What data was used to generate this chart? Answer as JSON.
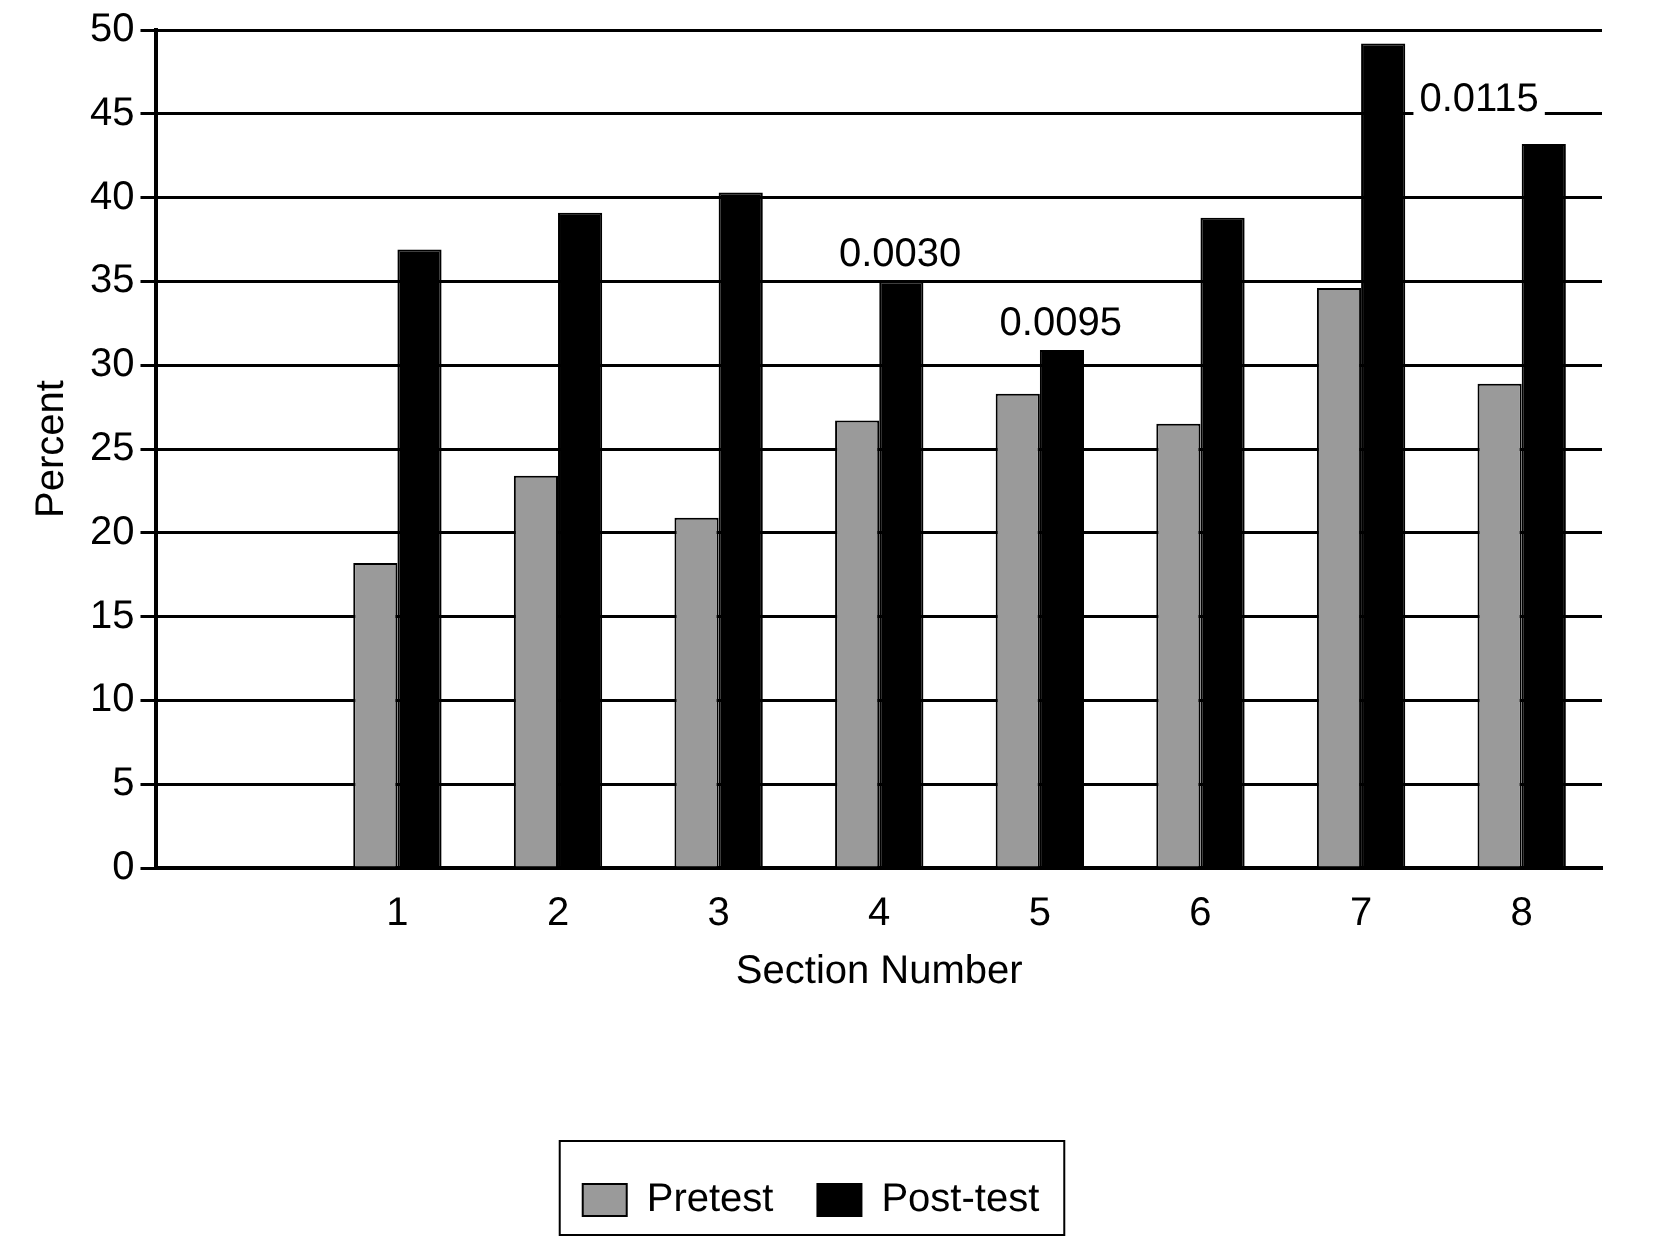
{
  "chart_data": {
    "type": "bar",
    "xlabel": "Section Number",
    "ylabel": "Percent",
    "categories": [
      null,
      "1",
      "2",
      "3",
      "4",
      "5",
      "6",
      "7",
      "8"
    ],
    "series": [
      {
        "name": "Pretest",
        "color": "#9a9a9a",
        "values": [
          null,
          18.2,
          23.4,
          20.9,
          26.7,
          28.3,
          26.5,
          34.6,
          28.9
        ]
      },
      {
        "name": "Post-test",
        "color": "#000000",
        "values": [
          null,
          36.9,
          39.1,
          40.3,
          35,
          30.9,
          38.8,
          49.2,
          43.2
        ]
      }
    ],
    "ylim": [
      0,
      50
    ],
    "yticks": [
      0,
      5,
      10,
      15,
      20,
      25,
      30,
      35,
      40,
      45,
      50
    ],
    "grid": "y",
    "legend": "bottom",
    "annotations": [
      {
        "text": "0.0030",
        "x": "4",
        "y": 35
      },
      {
        "text": "0.0095",
        "x": "5",
        "y": 30.9
      },
      "0.0115"
    ]
  }
}
